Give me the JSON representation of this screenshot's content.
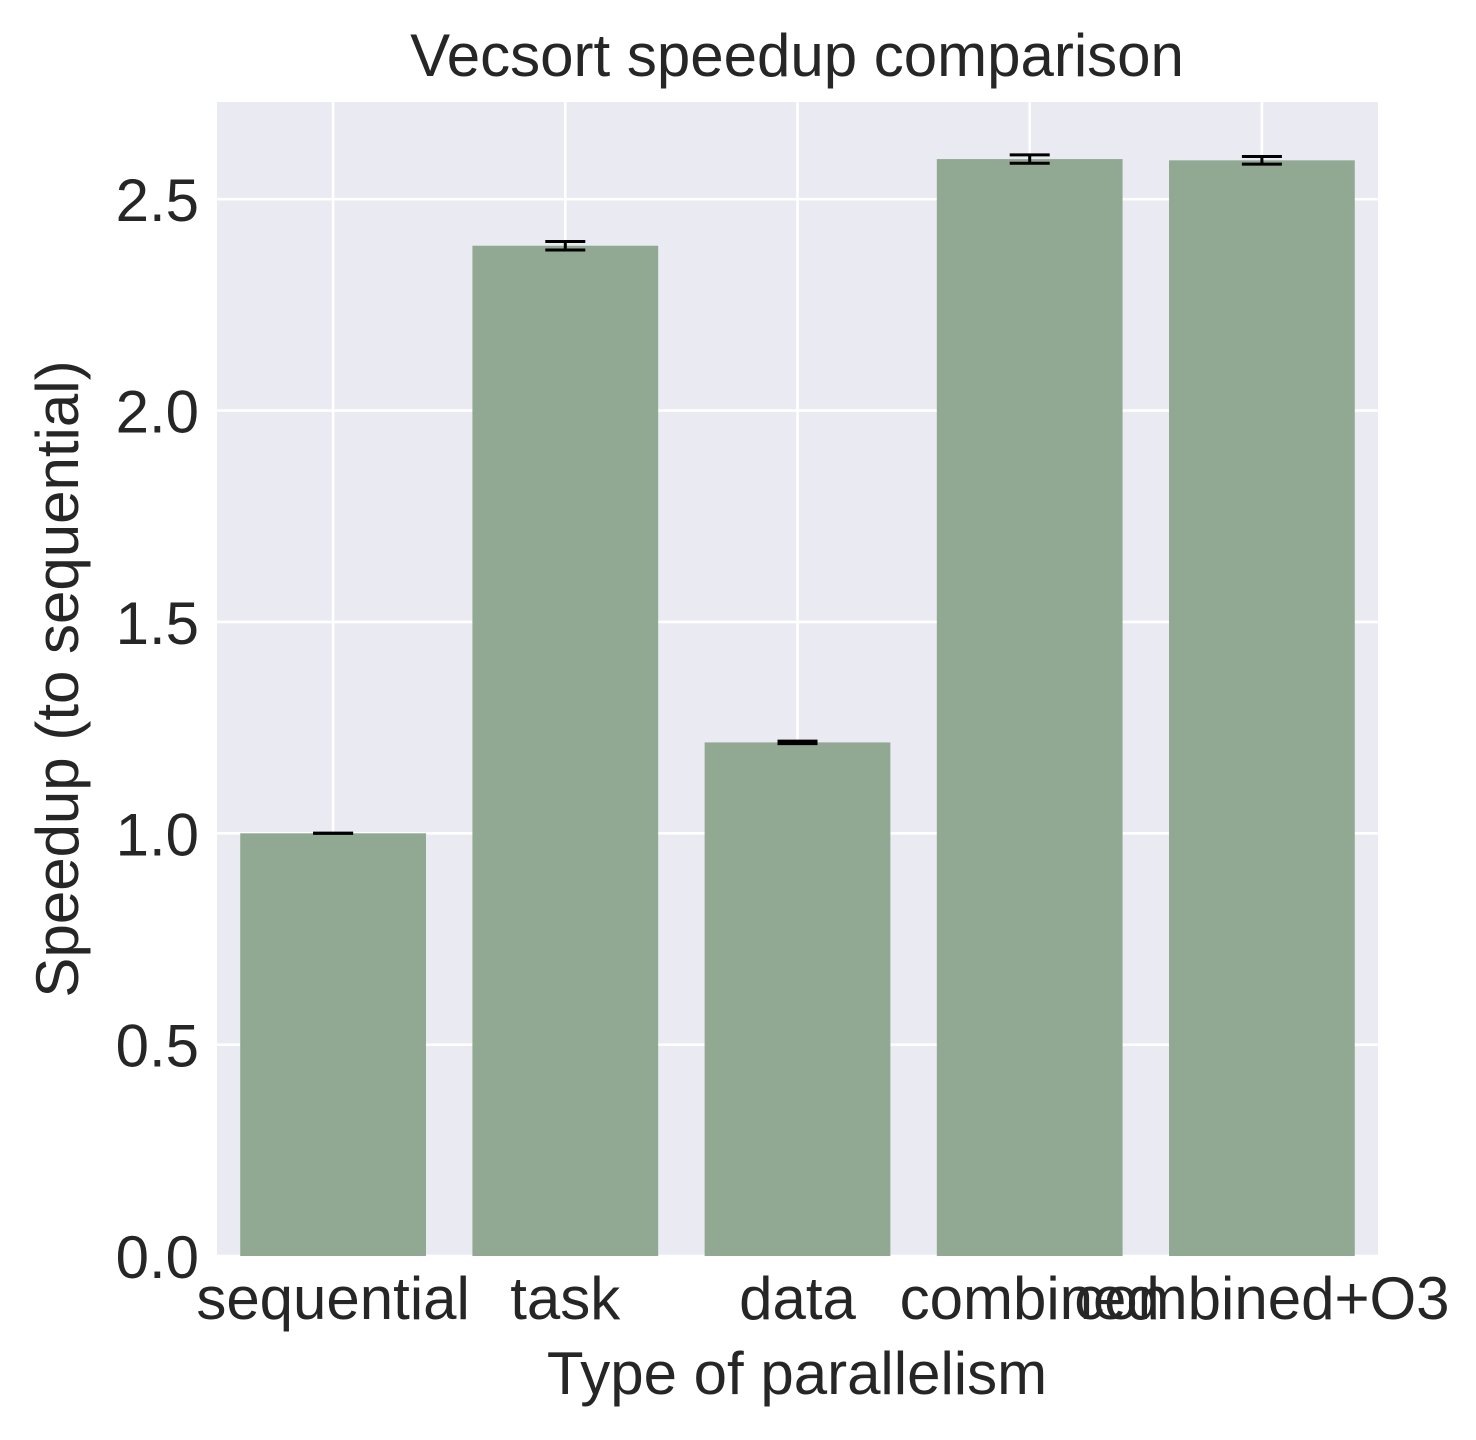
{
  "chart_data": {
    "type": "bar",
    "title": "Vecsort speedup comparison",
    "xlabel": "Type of parallelism",
    "ylabel": "Speedup (to sequential)",
    "categories": [
      "sequential",
      "task",
      "data",
      "combined",
      "combined+O3"
    ],
    "values": [
      1.0,
      2.39,
      1.215,
      2.595,
      2.592
    ],
    "errors": [
      0.0,
      0.01,
      0.003,
      0.01,
      0.009
    ],
    "ylim": [
      0,
      2.73
    ],
    "yticks": [
      0.0,
      0.5,
      1.0,
      1.5,
      2.0,
      2.5
    ],
    "ytick_labels": [
      "0.0",
      "0.5",
      "1.0",
      "1.5",
      "2.0",
      "2.5"
    ],
    "grid": true,
    "colors": {
      "bar": "#91a993",
      "plot_background": "#eaeaf2",
      "grid": "#ffffff",
      "error_bar": "#000000",
      "text": "#262626"
    }
  }
}
